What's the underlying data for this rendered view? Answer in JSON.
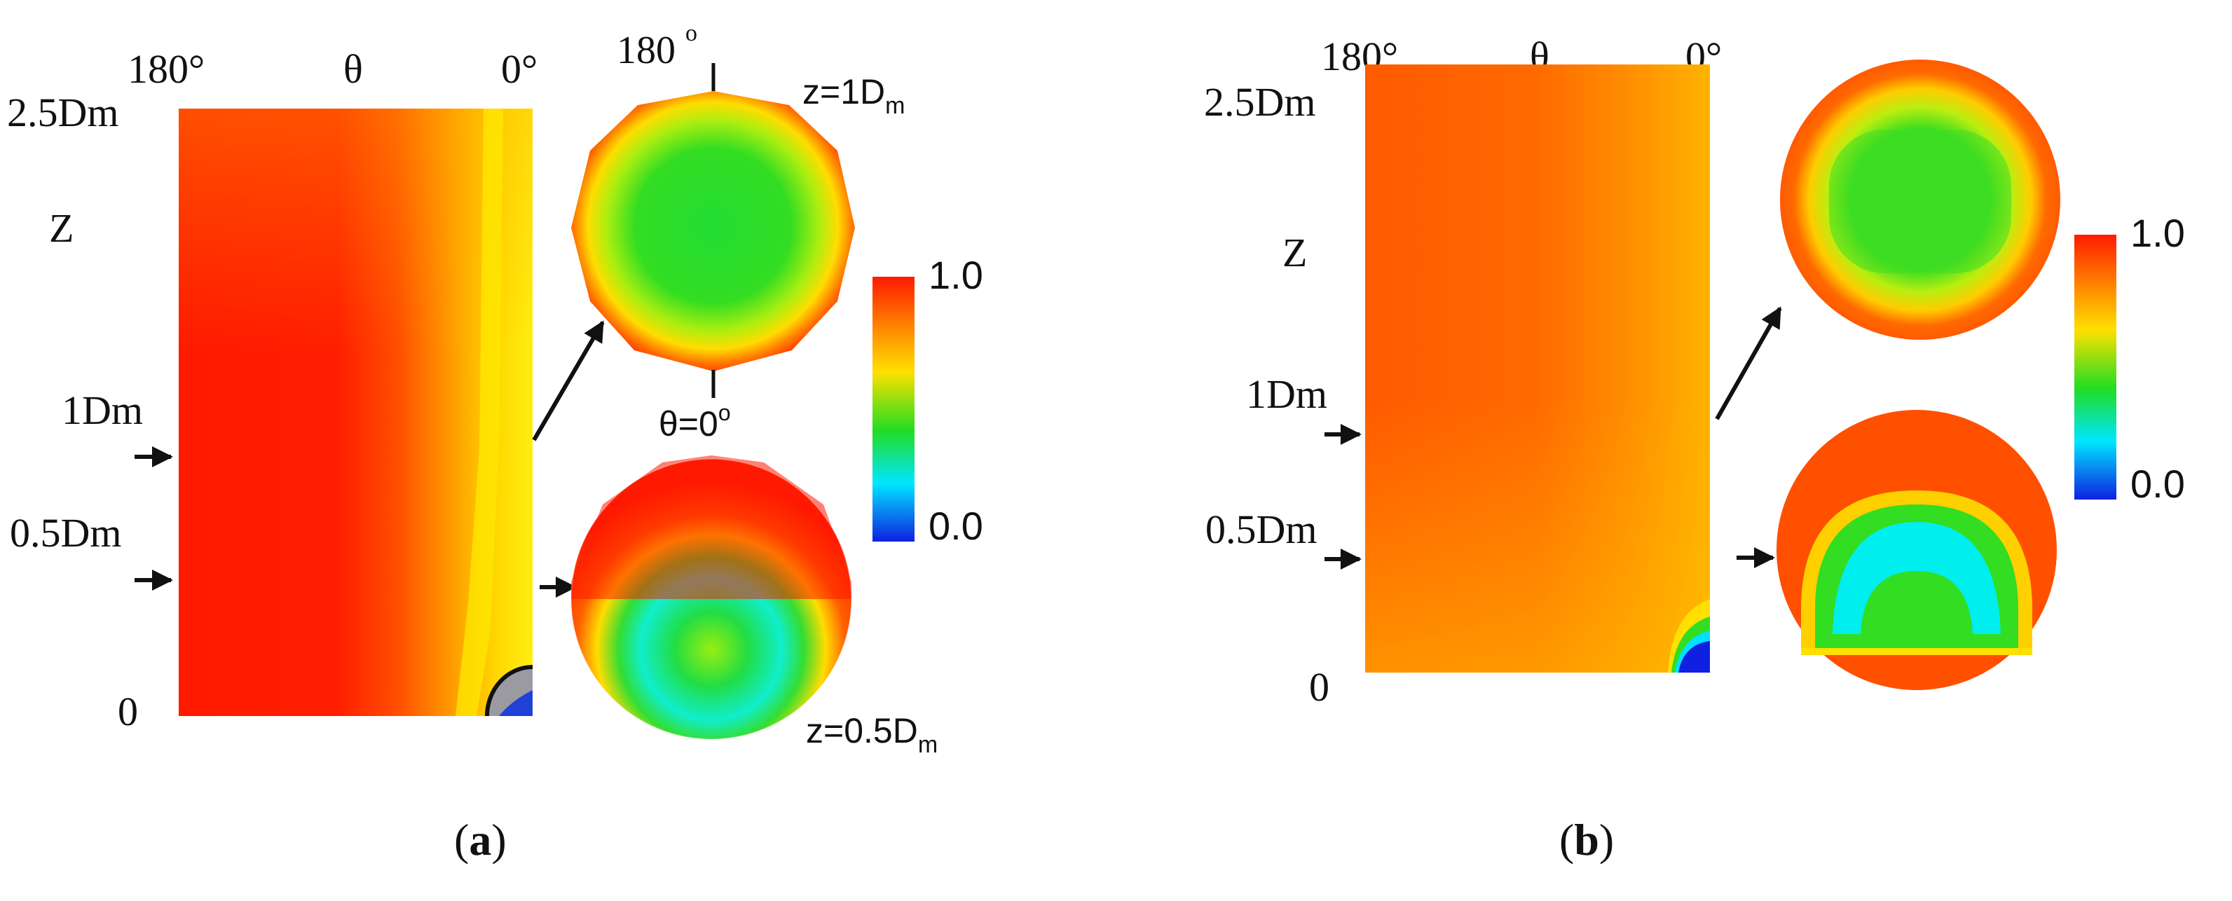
{
  "panels": [
    {
      "caption_open": "(",
      "caption_letter": "a",
      "caption_close": ")",
      "top_left_tick": "180°",
      "top_mid_label": "θ",
      "top_right_tick": "0°",
      "z_ticks": [
        "2.5Dm",
        "Z",
        "1Dm",
        "0.5Dm",
        "0"
      ],
      "section_top_label": "180",
      "section_top_deg": "o",
      "section_z1_base": "z=1D",
      "section_z1_sub": "m",
      "theta_zero_label": "θ=0",
      "theta_zero_deg": "o",
      "section_z05_base": "z=0.5D",
      "section_z05_sub": "m",
      "colorbar_max": "1.0",
      "colorbar_min": "0.0"
    },
    {
      "caption_open": "(",
      "caption_letter": "b",
      "caption_close": ")",
      "top_left_tick": "180°",
      "top_mid_label": "θ",
      "top_right_tick": "0°",
      "z_ticks": [
        "2.5Dm",
        "Z",
        "1Dm",
        "0.5Dm",
        "0"
      ],
      "colorbar_max": "1.0",
      "colorbar_min": "0.0"
    }
  ],
  "colors": {
    "contour_red": "#ff1a00",
    "contour_orange": "#ff6a00",
    "contour_yellow": "#ffdd00",
    "contour_green": "#22dd22",
    "contour_cyan": "#00eeff",
    "contour_blue": "#1030e0"
  }
}
